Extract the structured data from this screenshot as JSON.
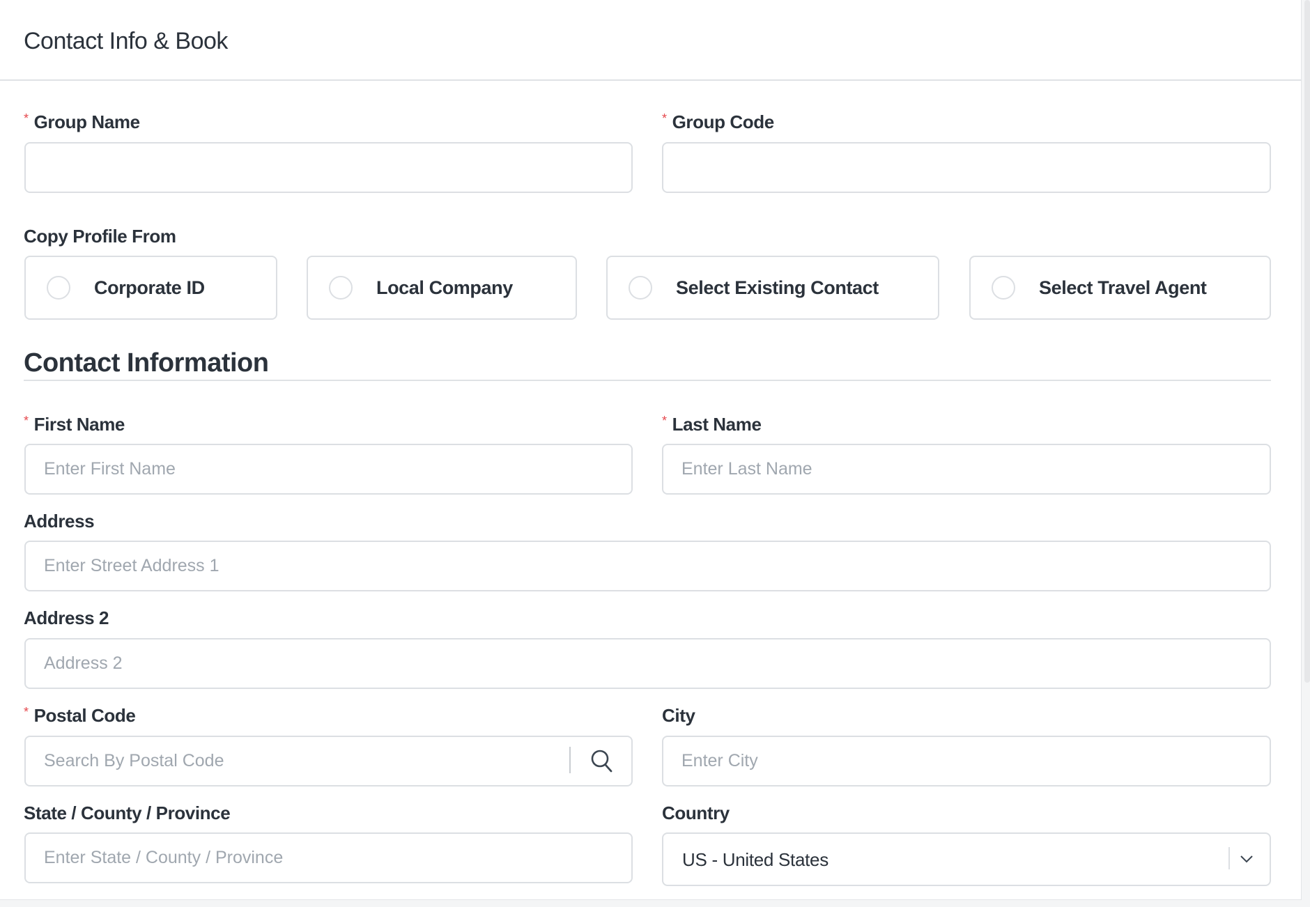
{
  "header": {
    "title": "Contact Info & Book"
  },
  "group": {
    "group_name": {
      "label": "Group Name",
      "required": true,
      "value": ""
    },
    "group_code": {
      "label": "Group Code",
      "required": true,
      "value": ""
    }
  },
  "copy_profile": {
    "label": "Copy Profile From",
    "options": [
      {
        "label": "Corporate ID",
        "selected": false
      },
      {
        "label": "Local Company",
        "selected": false
      },
      {
        "label": "Select Existing Contact",
        "selected": false
      },
      {
        "label": "Select Travel Agent",
        "selected": false
      }
    ]
  },
  "contact": {
    "title": "Contact Information",
    "first_name": {
      "label": "First Name",
      "required": true,
      "placeholder": "Enter First Name"
    },
    "last_name": {
      "label": "Last Name",
      "required": true,
      "placeholder": "Enter Last Name"
    },
    "address": {
      "label": "Address",
      "placeholder": "Enter Street Address 1"
    },
    "address2": {
      "label": "Address 2",
      "placeholder": "Address 2"
    },
    "postal": {
      "label": "Postal Code",
      "required": true,
      "placeholder": "Search By Postal Code",
      "icon": "search-icon"
    },
    "city": {
      "label": "City",
      "placeholder": "Enter City"
    },
    "state": {
      "label": "State / County / Province",
      "placeholder": "Enter State / County / Province"
    },
    "country": {
      "label": "Country",
      "value": "US - United States",
      "icon": "chevron-down-icon"
    }
  },
  "colors": {
    "required": "#e5484d",
    "border": "#dcdfe3",
    "text": "#2b323b",
    "placeholder": "#a0a7af"
  }
}
